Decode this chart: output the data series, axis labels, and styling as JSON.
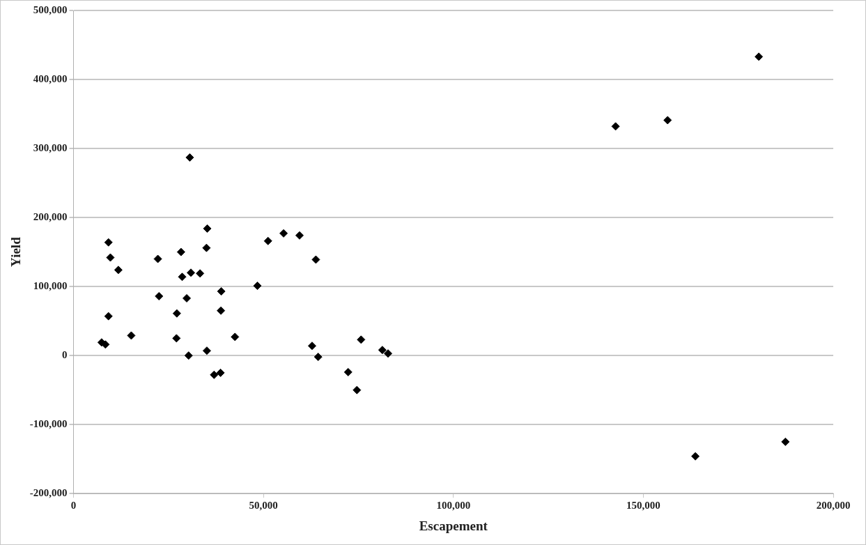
{
  "chart_data": {
    "type": "scatter",
    "xlabel": "Escapement",
    "ylabel": "Yield",
    "xlim": [
      0,
      200000
    ],
    "xticks": [
      0,
      {
        "value": 50000,
        "label": "50,000"
      },
      {
        "value": 100000,
        "label": "100,000"
      },
      {
        "value": 150000,
        "label": "150,000"
      },
      {
        "value": 200000,
        "label": "200,000"
      }
    ],
    "ylim": [
      -200000,
      500000
    ],
    "yticks": [
      {
        "value": -200000,
        "label": "-200,000"
      },
      {
        "value": -100000,
        "label": "-100,000"
      },
      0,
      {
        "value": 100000,
        "label": "100,000"
      },
      {
        "value": 200000,
        "label": "200,000"
      },
      {
        "value": 300000,
        "label": "300,000"
      },
      {
        "value": 400000,
        "label": "400,000"
      },
      {
        "value": 500000,
        "label": "500,000"
      }
    ],
    "grid": "y",
    "marker": "diamond",
    "series": [
      {
        "color": "#000000",
        "x": [
          30600,
          9200,
          9700,
          11800,
          9200,
          7400,
          8400,
          15200,
          22200,
          22500,
          27200,
          27100,
          28300,
          28600,
          29800,
          30300,
          30900,
          33300,
          35200,
          35000,
          35100,
          37000,
          38700,
          38900,
          38800,
          42500,
          48400,
          51200,
          55300,
          59500,
          63800,
          62800,
          64400,
          72300,
          75700,
          81300,
          82800,
          74600,
          142700,
          156400,
          180400,
          163700,
          187400
        ],
        "values": [
          287000,
          164000,
          142000,
          124000,
          57000,
          19000,
          16000,
          29000,
          140000,
          86000,
          61000,
          25000,
          150000,
          114000,
          83000,
          0,
          120000,
          119000,
          184000,
          156000,
          7000,
          -28000,
          -25000,
          93000,
          65000,
          27000,
          101000,
          166000,
          177000,
          174000,
          139000,
          14000,
          -2000,
          -24000,
          23000,
          8000,
          3000,
          -50000,
          332000,
          341000,
          433000,
          -146000,
          -125000
        ]
      }
    ]
  }
}
